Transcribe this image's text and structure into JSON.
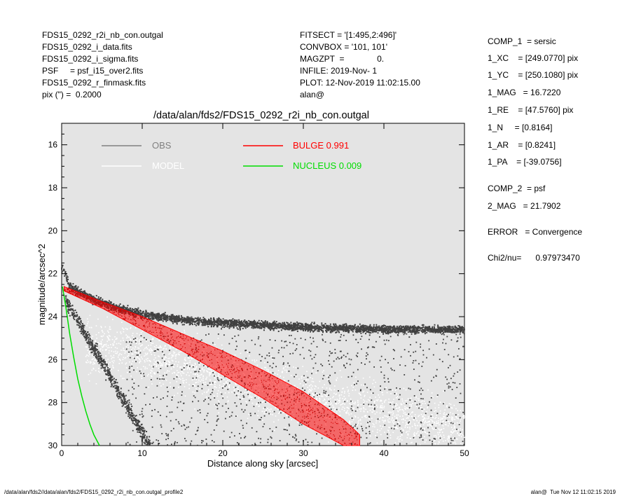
{
  "header_left": [
    "FDS15_0292_r2i_nb_con.outgal",
    "FDS15_0292_i_data.fits",
    "FDS15_0292_i_sigma.fits",
    "PSF     = psf_i15_over2.fits",
    "FDS15_0292_r_finmask.fits",
    "pix (\") =  0.2000"
  ],
  "header_mid": [
    "FITSECT = '[1:495,2:496]'",
    "CONVBOX = '101, 101'",
    "MAGZPT  =              0.",
    "INFILE: 2019-Nov- 1",
    "PLOT: 12-Nov-2019 11:02:15.00",
    "alan@"
  ],
  "components": {
    "comp1": "COMP_1  = sersic",
    "xc": "1_XC    = [249.0770] pix",
    "yc": "1_YC    = [250.1080] pix",
    "mag": "1_MAG   = 16.7220",
    "re": "1_RE    = [47.5760] pix",
    "n": "1_N     = [0.8164]",
    "ar": "1_AR    = [0.8241]",
    "pa": "1_PA    = [-39.0756]",
    "comp2": "COMP_2  = psf",
    "mag2": "2_MAG   = 21.7902",
    "error": "ERROR   = Convergence",
    "chi2": "Chi2/nu=      0.97973470"
  },
  "footer": {
    "left": "/data/alan/fds2//data/alan/fds2/FDS15_0292_r2i_nb_con.outgal_profile2",
    "right": "alan@  Tue Nov 12 11:02:15 2019"
  },
  "chart_data": {
    "type": "scatter",
    "title": "/data/alan/fds2/FDS15_0292_r2i_nb_con.outgal",
    "xlabel": "Distance along sky [arcsec]",
    "ylabel": "magnitude/arcsec^2",
    "xlim": [
      0,
      50
    ],
    "ylim": [
      30,
      15
    ],
    "y_inverted": true,
    "xticks": [
      0,
      10,
      20,
      30,
      40,
      50
    ],
    "yticks": [
      16,
      18,
      20,
      22,
      24,
      26,
      28,
      30
    ],
    "grid": false,
    "background": "#e4e4e4",
    "legend": [
      {
        "name": "OBS",
        "color": "#808080",
        "column": "left"
      },
      {
        "name": "MODEL",
        "color": "#ffffff",
        "column": "left"
      },
      {
        "name": "BULGE  0.991",
        "color": "#ff0000",
        "column": "right"
      },
      {
        "name": "NUCLEUS  0.009",
        "color": "#00dd00",
        "column": "right"
      }
    ],
    "series": [
      {
        "name": "OBS",
        "kind": "points",
        "color": "#404040",
        "x": [
          0.2,
          1,
          2,
          3,
          4,
          5,
          6,
          8,
          10,
          12,
          14,
          16,
          18,
          20,
          22,
          25,
          30,
          35,
          40,
          45,
          50
        ],
        "y": [
          21.8,
          22.6,
          22.8,
          23.0,
          23.2,
          23.35,
          23.5,
          23.7,
          23.9,
          24.0,
          24.1,
          24.2,
          24.25,
          24.3,
          24.35,
          24.4,
          24.5,
          24.55,
          24.6,
          24.6,
          24.6
        ]
      },
      {
        "name": "MODEL",
        "kind": "points",
        "color": "#ffffff",
        "x": [
          10,
          15,
          20,
          25,
          30,
          35,
          40,
          45,
          50
        ],
        "y": [
          25.5,
          26.2,
          26.8,
          27.3,
          27.8,
          28.2,
          28.6,
          29.0,
          29.3
        ]
      },
      {
        "name": "BULGE  0.991",
        "kind": "band",
        "color": "#ff0000",
        "x": [
          0.3,
          5,
          10,
          15,
          20,
          25,
          30,
          35,
          37
        ],
        "y_upper": [
          22.6,
          23.3,
          24.0,
          24.8,
          25.6,
          26.5,
          27.5,
          28.8,
          29.5
        ],
        "y_lower": [
          22.8,
          23.6,
          24.6,
          25.6,
          26.7,
          27.8,
          29.0,
          30.0,
          30.0
        ]
      },
      {
        "name": "NUCLEUS  0.009",
        "kind": "line",
        "color": "#00dd00",
        "x": [
          0.1,
          0.5,
          1,
          1.5,
          2,
          2.5,
          3,
          3.5,
          4,
          4.7
        ],
        "y": [
          22.6,
          23.5,
          24.8,
          25.9,
          26.9,
          27.7,
          28.4,
          29.0,
          29.5,
          30.0
        ]
      }
    ]
  }
}
